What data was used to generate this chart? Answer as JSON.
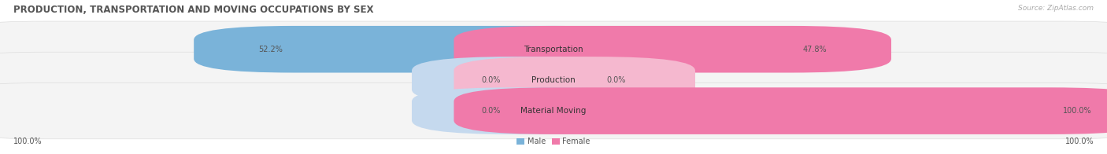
{
  "title": "PRODUCTION, TRANSPORTATION AND MOVING OCCUPATIONS BY SEX",
  "source": "Source: ZipAtlas.com",
  "categories": [
    "Transportation",
    "Production",
    "Material Moving"
  ],
  "male_pct": [
    52.2,
    0.0,
    0.0
  ],
  "female_pct": [
    47.8,
    0.0,
    100.0
  ],
  "left_labels": [
    "52.2%",
    "0.0%",
    "0.0%"
  ],
  "right_labels": [
    "47.8%",
    "0.0%",
    "100.0%"
  ],
  "bottom_left_label": "100.0%",
  "bottom_right_label": "100.0%",
  "male_color": "#7ab3d9",
  "female_color": "#f07aaa",
  "male_light_color": "#c5d9ee",
  "female_light_color": "#f5b8cf",
  "row_bg_color": "#f0f0f0",
  "row_alt_bg_color": "#e8e8e8",
  "title_color": "#555555",
  "label_color": "#555555",
  "source_color": "#aaaaaa",
  "title_fontsize": 8.5,
  "label_fontsize": 7.0,
  "category_fontsize": 7.5,
  "source_fontsize": 6.5
}
